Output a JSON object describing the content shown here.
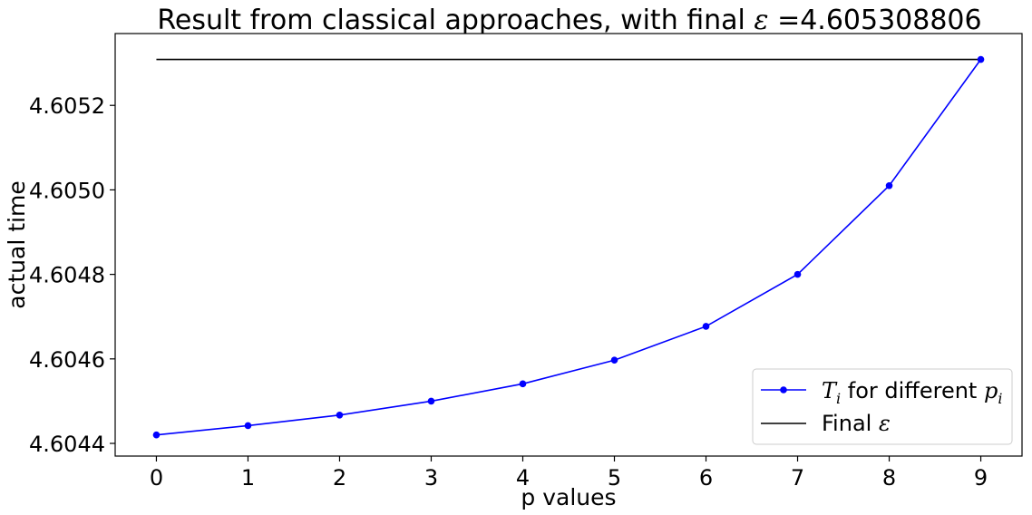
{
  "chart_data": {
    "type": "line",
    "title": "Result from classical approaches, with final ε =4.605308806",
    "title_prefix": "Result from classical approaches, with final ",
    "title_symbol": "ε",
    "title_value": " =4.605308806",
    "xlabel": "p values",
    "ylabel": "actual time",
    "x": [
      0,
      1,
      2,
      3,
      4,
      5,
      6,
      7,
      8,
      9
    ],
    "xlim": [
      -0.45,
      9.45
    ],
    "ylim": [
      4.60437,
      4.60537
    ],
    "xticks": [
      0,
      1,
      2,
      3,
      4,
      5,
      6,
      7,
      8,
      9
    ],
    "yticks": [
      4.6044,
      4.6046,
      4.6048,
      4.605,
      4.6052
    ],
    "ytick_labels": [
      "4.6044",
      "4.6046",
      "4.6048",
      "4.6050",
      "4.6052"
    ],
    "grid": false,
    "legend_position": "lower-right",
    "series": [
      {
        "name": "T_i for different p_i",
        "legend_label": {
          "T": "T",
          "i": "i",
          "mid": " for different ",
          "p": "p",
          "pi": "i"
        },
        "color": "#0000ff",
        "marker": "circle",
        "values": [
          4.60442,
          4.604442,
          4.604467,
          4.6045,
          4.604541,
          4.604597,
          4.604677,
          4.6048,
          4.60501,
          4.605308806
        ]
      },
      {
        "name": "Final ε",
        "legend_label": {
          "text": "Final ",
          "symbol": "ε"
        },
        "color": "#000000",
        "marker": "none",
        "values": [
          4.605308806,
          4.605308806,
          4.605308806,
          4.605308806,
          4.605308806,
          4.605308806,
          4.605308806,
          4.605308806,
          4.605308806,
          4.605308806
        ]
      }
    ]
  }
}
